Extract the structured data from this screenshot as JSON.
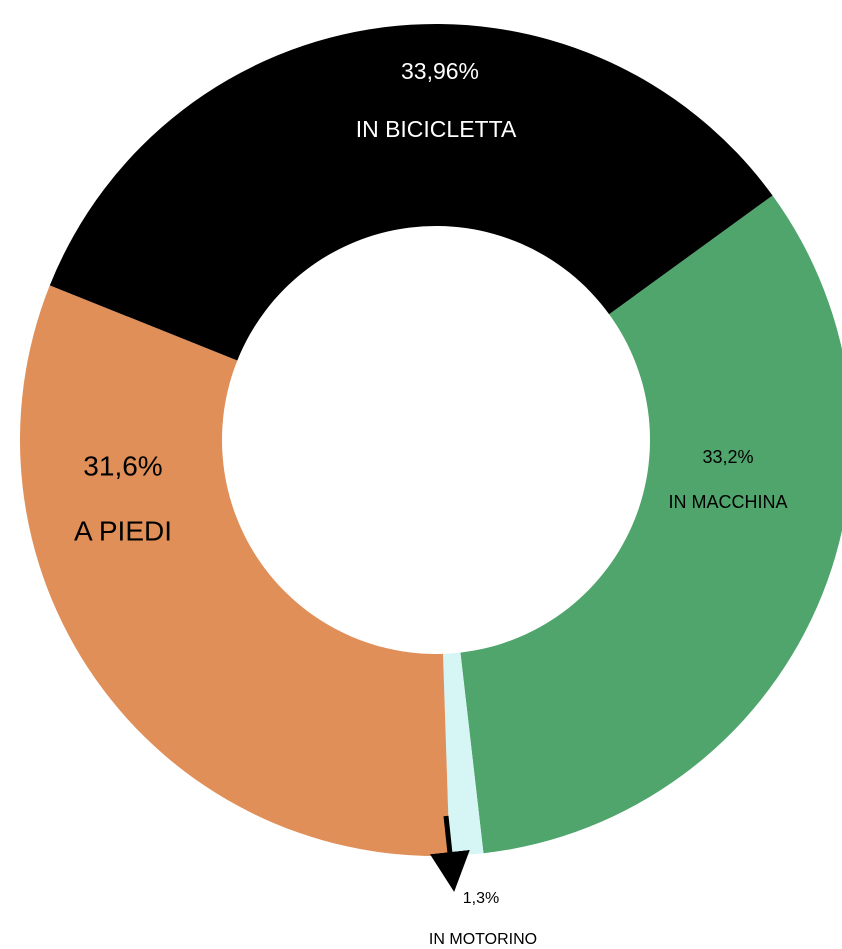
{
  "chart_data": {
    "type": "pie",
    "categories": [
      "IN MACCHINA",
      "IN MOTORINO",
      "A PIEDI",
      "IN BICICLETTA"
    ],
    "values": [
      33.2,
      1.3,
      31.6,
      33.96
    ],
    "value_labels": [
      "33,2%",
      "1,3%",
      "31,6%",
      "33,96%"
    ],
    "colors": [
      "#4fa56c",
      "#d6f5f5",
      "#e08f58",
      "#000000"
    ]
  }
}
